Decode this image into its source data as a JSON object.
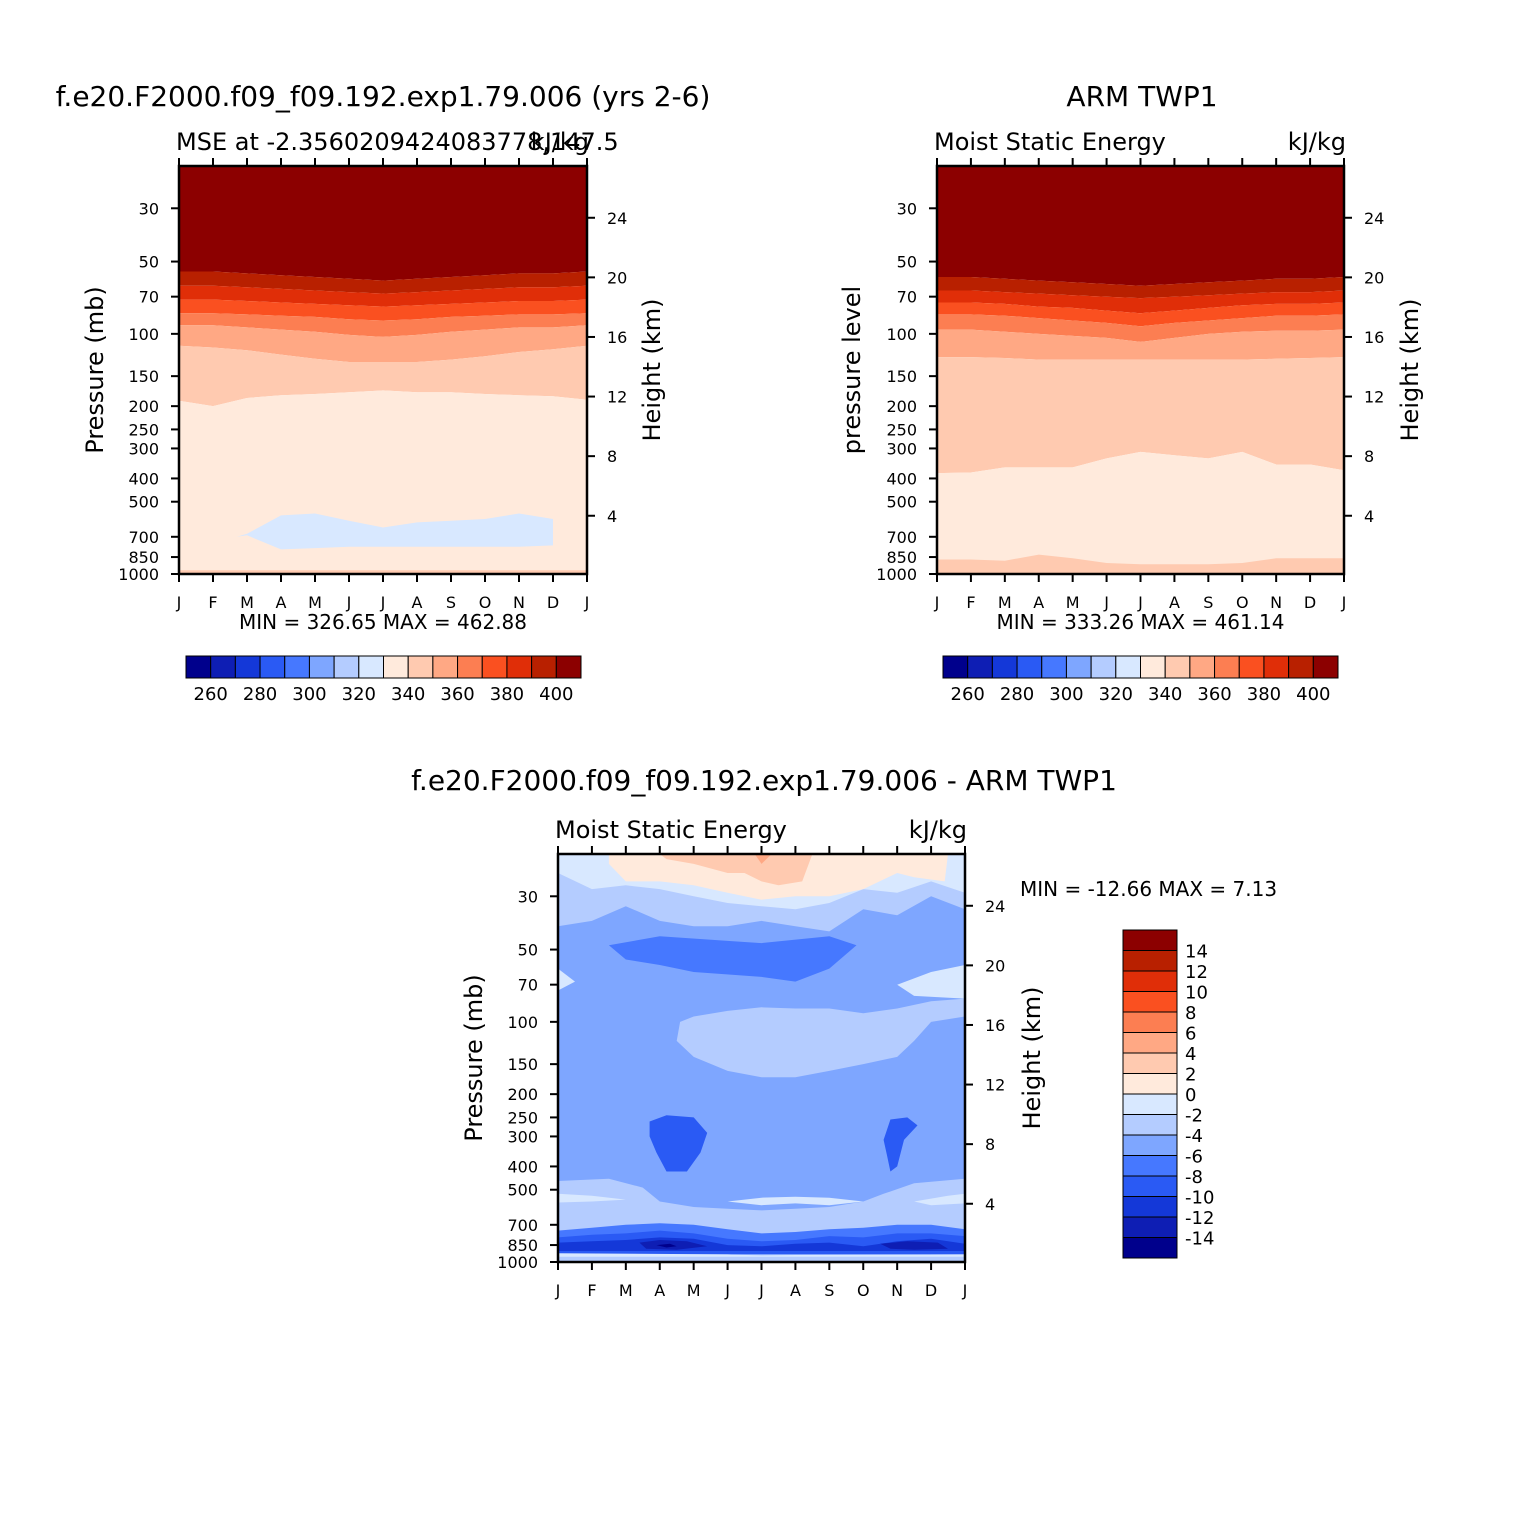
{
  "colors": {
    "abs_palette": [
      "#00008c",
      "#0e1eb4",
      "#1438d8",
      "#2a5af4",
      "#4678ff",
      "#7ea6ff",
      "#b4ccff",
      "#d8e8ff",
      "#ffeadc",
      "#ffcab0",
      "#ffa884",
      "#fc7e52",
      "#fa5020",
      "#e02e08",
      "#b82000",
      "#8c0000"
    ],
    "diff_palette": [
      "#00008c",
      "#0e1eb4",
      "#1438d8",
      "#2a5af4",
      "#4678ff",
      "#7ea6ff",
      "#b4ccff",
      "#d8e8ff",
      "#ffeadc",
      "#ffcab0",
      "#ffa884",
      "#fc7e52",
      "#fa5020",
      "#e02e08",
      "#b82000",
      "#8c0000"
    ]
  },
  "chart_data": [
    {
      "type": "heatmap",
      "panel": "model",
      "title": "f.e20.F2000.f09_f09.192.exp1.79.006 (yrs 2-6)",
      "subtitle_left": "MSE at -2.3560209424083778,147.5",
      "subtitle_right": "kJ/kg",
      "ylabel": "Pressure (mb)",
      "ylabel_right": "Height (km)",
      "months": [
        "J",
        "F",
        "M",
        "A",
        "M",
        "J",
        "J",
        "A",
        "S",
        "O",
        "N",
        "D",
        "J"
      ],
      "pressure_ticks": [
        "30",
        "50",
        "70",
        "100",
        "150",
        "200",
        "250",
        "300",
        "400",
        "500",
        "700",
        "850",
        "1000"
      ],
      "height_ticks": [
        "24",
        "20",
        "16",
        "12",
        "8",
        "4"
      ],
      "stats": "MIN = 326.65 MAX = 462.88",
      "levels": [
        260,
        270,
        280,
        290,
        300,
        310,
        320,
        330,
        340,
        350,
        360,
        370,
        380,
        390,
        400
      ],
      "colorbar_labels": [
        "260",
        "280",
        "300",
        "320",
        "340",
        "360",
        "380",
        "400"
      ],
      "ylim_mb": [
        20,
        1000
      ],
      "mse_profile_levels_mb": [
        20,
        30,
        50,
        60,
        70,
        80,
        100,
        150,
        200,
        300,
        500,
        700,
        850,
        950,
        1000
      ],
      "boundary_pressures_mb": {
        "400": [
          55,
          55,
          56,
          57,
          58,
          59,
          60,
          59,
          58,
          57,
          56,
          56,
          55
        ],
        "390": [
          63,
          63,
          64,
          65,
          66,
          67,
          68,
          67,
          66,
          65,
          64,
          64,
          63
        ],
        "380": [
          72,
          72,
          73,
          74,
          75,
          76,
          77,
          76,
          75,
          74,
          73,
          73,
          72
        ],
        "370": [
          82,
          82,
          83,
          84,
          85,
          87,
          88,
          87,
          85,
          84,
          83,
          83,
          82
        ],
        "360": [
          92,
          92,
          94,
          96,
          98,
          101,
          103,
          101,
          98,
          96,
          94,
          94,
          92
        ],
        "350": [
          112,
          114,
          117,
          122,
          127,
          131,
          131,
          131,
          128,
          124,
          119,
          116,
          112
        ],
        "340": [
          190,
          200,
          185,
          180,
          178,
          175,
          172,
          175,
          175,
          178,
          180,
          182,
          188
        ],
        "330_region_top": [
          null,
          null,
          680,
          570,
          560,
          600,
          640,
          610,
          600,
          590,
          560,
          590,
          null
        ],
        "330_region_bottom": [
          null,
          null,
          690,
          790,
          780,
          770,
          770,
          770,
          770,
          770,
          770,
          760,
          null
        ]
      }
    },
    {
      "type": "heatmap",
      "panel": "observations",
      "title": "ARM TWP1",
      "subtitle_left": "Moist Static Energy",
      "subtitle_right": "kJ/kg",
      "ylabel": "pressure level",
      "ylabel_right": "Height (km)",
      "months": [
        "J",
        "F",
        "M",
        "A",
        "M",
        "J",
        "J",
        "A",
        "S",
        "O",
        "N",
        "D",
        "J"
      ],
      "pressure_ticks": [
        "30",
        "50",
        "70",
        "100",
        "150",
        "200",
        "250",
        "300",
        "400",
        "500",
        "700",
        "850",
        "1000"
      ],
      "height_ticks": [
        "24",
        "20",
        "16",
        "12",
        "8",
        "4"
      ],
      "stats": "MIN = 333.26 MAX = 461.14",
      "levels": [
        260,
        270,
        280,
        290,
        300,
        310,
        320,
        330,
        340,
        350,
        360,
        370,
        380,
        390,
        400
      ],
      "colorbar_labels": [
        "260",
        "280",
        "300",
        "320",
        "340",
        "360",
        "380",
        "400"
      ],
      "ylim_mb": [
        20,
        1000
      ],
      "boundary_pressures_mb": {
        "400": [
          58,
          58,
          59,
          60,
          61,
          62,
          63,
          62,
          61,
          60,
          59,
          59,
          58
        ],
        "390": [
          66,
          66,
          67,
          68,
          69,
          70,
          71,
          70,
          69,
          68,
          67,
          67,
          66
        ],
        "380": [
          74,
          74,
          75,
          77,
          78,
          80,
          82,
          80,
          78,
          76,
          75,
          75,
          74
        ],
        "370": [
          83,
          83,
          84,
          86,
          88,
          90,
          93,
          90,
          88,
          86,
          84,
          84,
          83
        ],
        "360": [
          96,
          96,
          98,
          100,
          102,
          104,
          108,
          104,
          100,
          98,
          97,
          97,
          96
        ],
        "350": [
          125,
          125,
          126,
          128,
          128,
          128,
          128,
          128,
          128,
          128,
          127,
          126,
          125
        ],
        "340": [
          380,
          378,
          360,
          360,
          360,
          330,
          310,
          320,
          330,
          310,
          350,
          350,
          370
        ],
        "330": [
          870,
          870,
          880,
          830,
          860,
          900,
          910,
          910,
          910,
          900,
          860,
          860,
          860
        ]
      }
    },
    {
      "type": "heatmap",
      "panel": "difference",
      "title": "f.e20.F2000.f09_f09.192.exp1.79.006 - ARM TWP1",
      "subtitle_left": "Moist Static Energy",
      "subtitle_right": "kJ/kg",
      "ylabel": "Pressure (mb)",
      "ylabel_right": "Height (km)",
      "months": [
        "J",
        "F",
        "M",
        "A",
        "M",
        "J",
        "J",
        "A",
        "S",
        "O",
        "N",
        "D",
        "J"
      ],
      "pressure_ticks": [
        "30",
        "50",
        "70",
        "100",
        "150",
        "200",
        "250",
        "300",
        "400",
        "500",
        "700",
        "850",
        "1000"
      ],
      "height_ticks": [
        "24",
        "20",
        "16",
        "12",
        "8",
        "4"
      ],
      "stats": "MIN = -12.66 MAX =    7.13",
      "levels": [
        -14,
        -12,
        -10,
        -8,
        -6,
        -4,
        -2,
        0,
        2,
        4,
        6,
        8,
        10,
        12,
        14
      ],
      "colorbar_labels": [
        "14",
        "12",
        "10",
        "8",
        "6",
        "4",
        "2",
        "0",
        "-2",
        "-4",
        "-6",
        "-8",
        "-10",
        "-12",
        "-14"
      ],
      "ylim_mb": [
        20,
        1000
      ],
      "months_grid": [
        0,
        1,
        2,
        3,
        4,
        5,
        6,
        7,
        8,
        9,
        10,
        11,
        12
      ],
      "pressure_grid_mb": [
        20,
        30,
        40,
        50,
        60,
        70,
        85,
        100,
        125,
        150,
        200,
        250,
        300,
        400,
        500,
        600,
        700,
        775,
        850,
        925,
        1000
      ]
    }
  ]
}
